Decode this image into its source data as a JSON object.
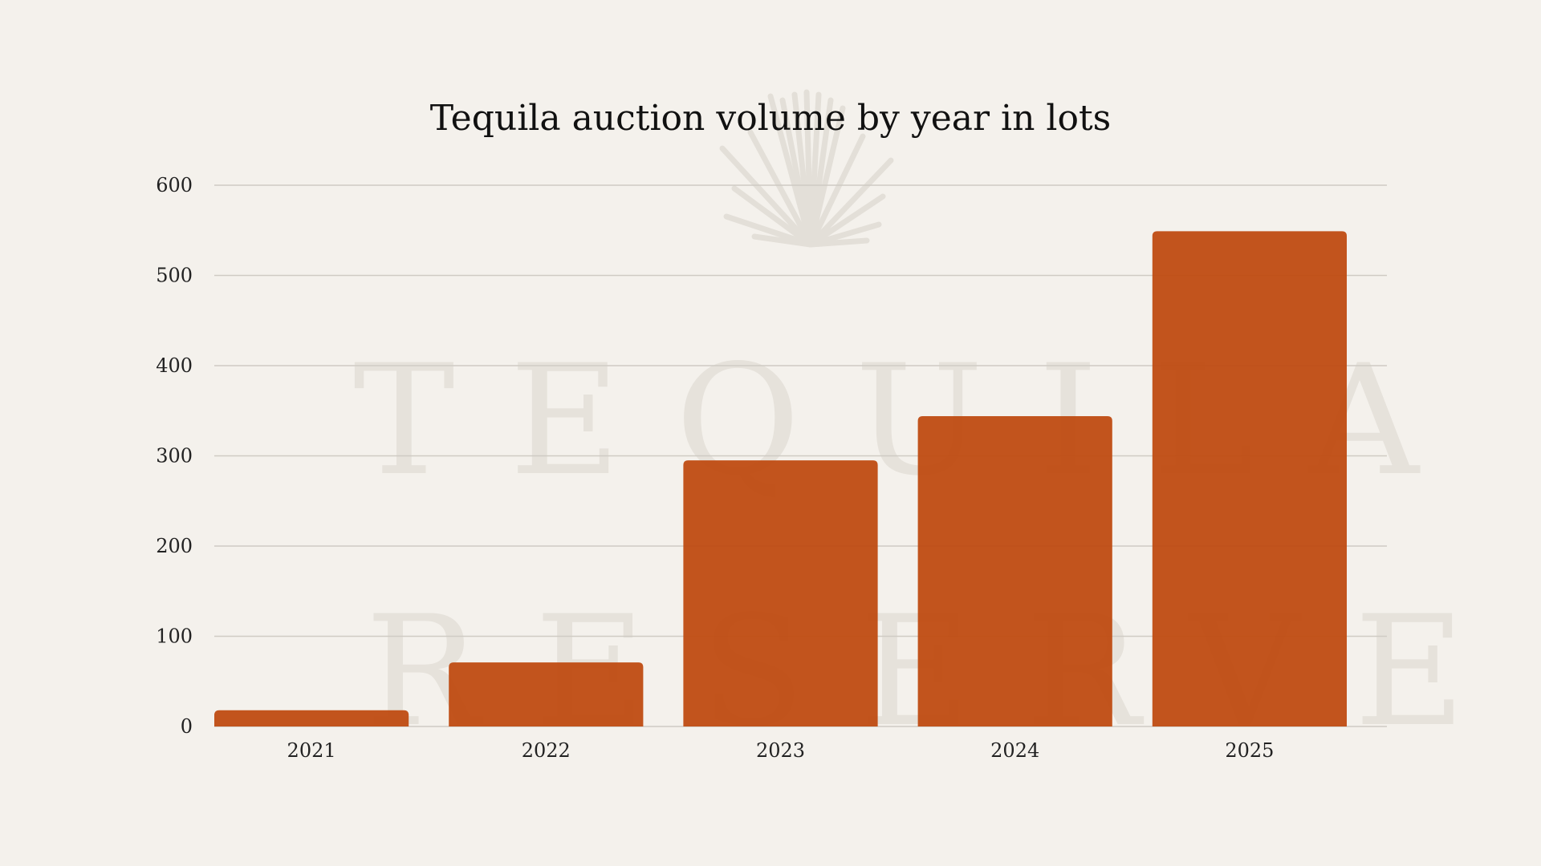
{
  "chart_data": {
    "type": "bar",
    "title": "Tequila auction volume by year in lots",
    "categories": [
      "2021",
      "2022",
      "2023",
      "2024",
      "2025"
    ],
    "values": [
      18,
      71,
      295,
      344,
      549
    ],
    "ylim": [
      0,
      600
    ],
    "yticks": [
      "0",
      "100",
      "200",
      "300",
      "400",
      "500",
      "600"
    ],
    "grid": true,
    "xlabel": "",
    "ylabel": "",
    "bar_color": "#bf4d14",
    "watermark_color": "#e6e2db",
    "background_color": "#f4f1ec"
  },
  "watermark": {
    "line1": "TEQUILA",
    "line2": "RESERVE",
    "icon": "agave-icon"
  }
}
